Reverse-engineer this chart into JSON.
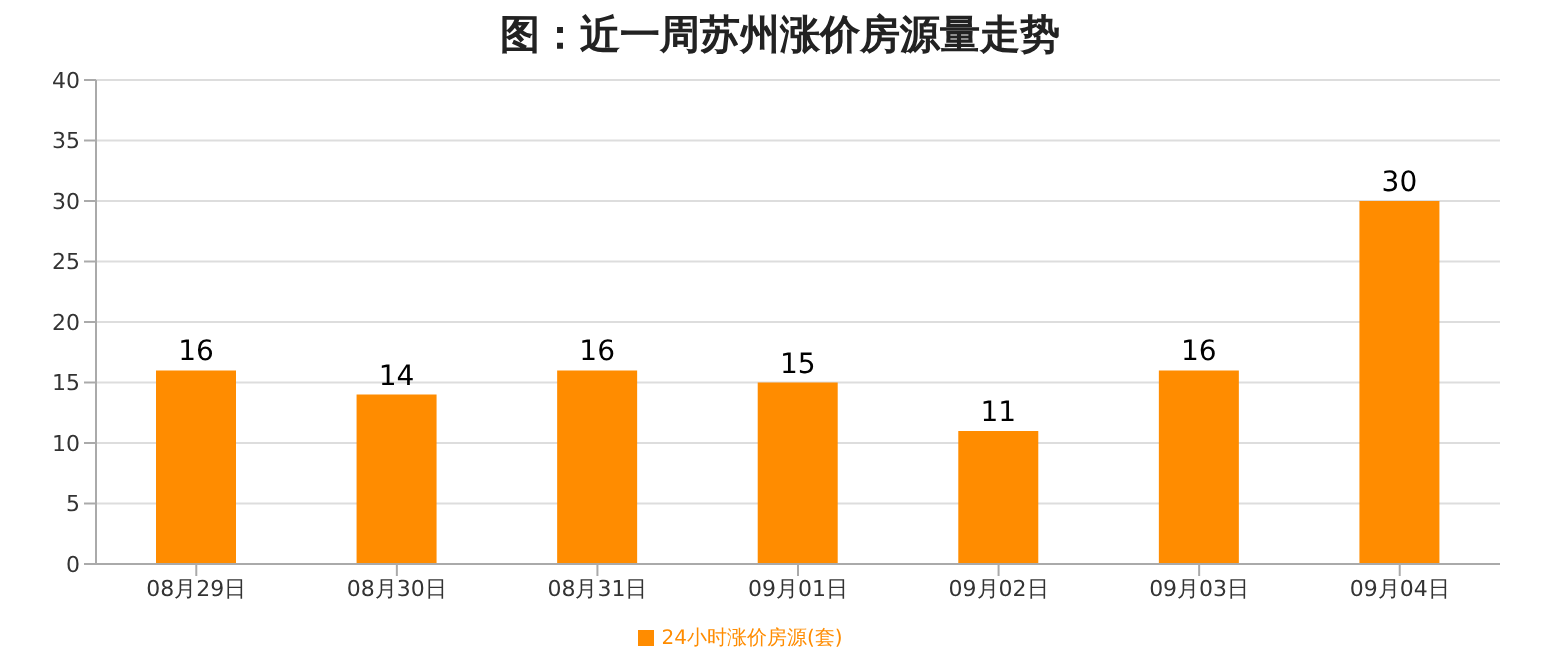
{
  "chart_data": {
    "type": "bar",
    "title": "图：近一周苏州涨价房源量走势",
    "categories": [
      "08月29日",
      "08月30日",
      "08月31日",
      "09月01日",
      "09月02日",
      "09月03日",
      "09月04日"
    ],
    "series": [
      {
        "name": "24小时涨价房源(套)",
        "color": "#ff8c00",
        "values": [
          16,
          14,
          16,
          15,
          11,
          16,
          30
        ]
      }
    ],
    "ylim": [
      0,
      40
    ],
    "yticks": [
      0,
      5,
      10,
      15,
      20,
      25,
      30,
      35,
      40
    ],
    "grid": "y",
    "legend": "bottom",
    "data_labels": true
  }
}
